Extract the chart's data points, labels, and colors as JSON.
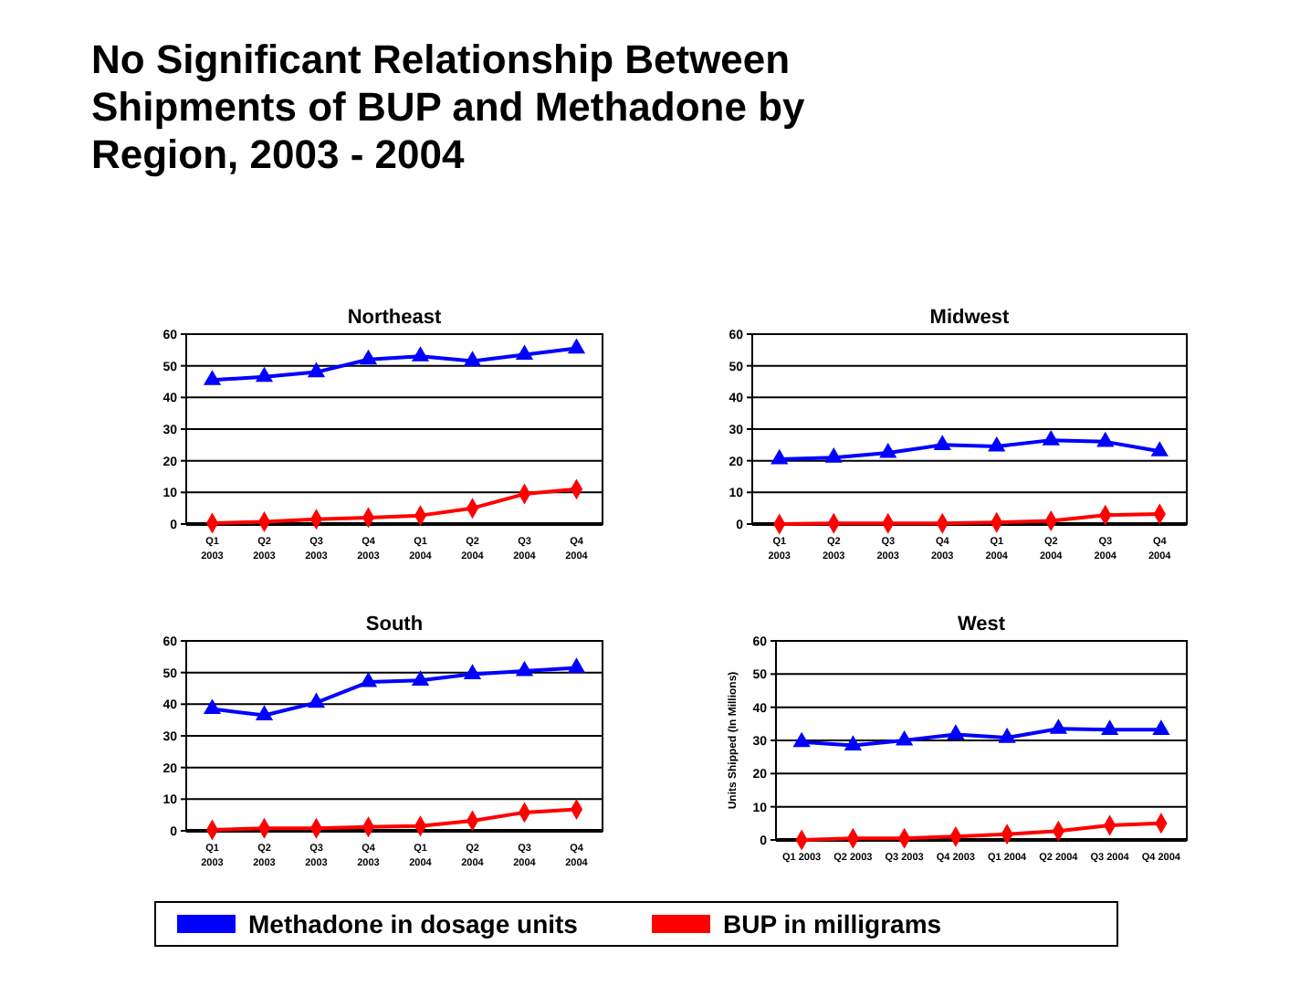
{
  "chart_data": [
    {
      "type": "line",
      "title": "Northeast",
      "annotations": [
        "No Significant Relationship Between Shipments of BUP and Methadone by Region, 2003 - 2004"
      ],
      "categories": [
        "Q1\n2003",
        "Q2\n2003",
        "Q3\n2003",
        "Q4\n2003",
        "Q1\n2004",
        "Q2\n2004",
        "Q3\n2004",
        "Q4\n2004"
      ],
      "ylim": [
        0,
        60
      ],
      "yticks": [
        0,
        10,
        20,
        30,
        40,
        50,
        60
      ],
      "grid": "y",
      "legend": "bottom",
      "series": [
        {
          "name": "Methadone in dosage units",
          "color": "#0000ff",
          "marker": "triangle",
          "values": [
            45.5,
            46.5,
            48,
            52,
            53,
            51.5,
            53.5,
            55.5
          ]
        },
        {
          "name": "BUP in milligrams",
          "color": "#ff0000",
          "marker": "diamond",
          "values": [
            0.3,
            0.7,
            1.5,
            2,
            2.7,
            5,
            9.5,
            11
          ]
        }
      ]
    },
    {
      "type": "line",
      "title": "Midwest",
      "categories": [
        "Q1\n2003",
        "Q2\n2003",
        "Q3\n2003",
        "Q4\n2003",
        "Q1\n2004",
        "Q2\n2004",
        "Q3\n2004",
        "Q4\n2004"
      ],
      "ylim": [
        0,
        60
      ],
      "yticks": [
        0,
        10,
        20,
        30,
        40,
        50,
        60
      ],
      "grid": "y",
      "series": [
        {
          "color": "#0000ff",
          "marker": "triangle",
          "values": [
            20.5,
            21,
            22.5,
            25,
            24.5,
            26.5,
            26,
            23
          ]
        },
        {
          "color": "#ff0000",
          "marker": "diamond",
          "values": [
            0,
            0.2,
            0.2,
            0.2,
            0.5,
            1,
            2.8,
            3.2
          ]
        }
      ]
    },
    {
      "type": "line",
      "title": "South",
      "categories": [
        "Q1\n2003",
        "Q2\n2003",
        "Q3\n2003",
        "Q4\n2003",
        "Q1\n2004",
        "Q2\n2004",
        "Q3\n2004",
        "Q4\n2004"
      ],
      "ylim": [
        0,
        60
      ],
      "yticks": [
        0,
        10,
        20,
        30,
        40,
        50,
        60
      ],
      "grid": "y",
      "series": [
        {
          "color": "#0000ff",
          "marker": "triangle",
          "values": [
            38.5,
            36.5,
            40.5,
            47,
            47.5,
            49.5,
            50.5,
            51.5
          ]
        },
        {
          "color": "#ff0000",
          "marker": "diamond",
          "values": [
            0.3,
            0.8,
            0.8,
            1.2,
            1.5,
            3.2,
            5.8,
            6.8
          ]
        }
      ]
    },
    {
      "type": "line",
      "title": "West",
      "ylabel": "Units Shipped (In Millions)",
      "categories": [
        "Q1 2003",
        "Q2 2003",
        "Q3 2003",
        "Q4 2003",
        "Q1 2004",
        "Q2 2004",
        "Q3 2004",
        "Q4 2004"
      ],
      "ylim": [
        0,
        60
      ],
      "yticks": [
        0,
        10,
        20,
        30,
        40,
        50,
        60
      ],
      "grid": "y",
      "series": [
        {
          "color": "#0000ff",
          "marker": "triangle",
          "values": [
            29.5,
            28.5,
            30,
            31.8,
            30.8,
            33.5,
            33.2,
            33.2
          ]
        },
        {
          "color": "#ff0000",
          "marker": "diamond",
          "values": [
            0,
            0.5,
            0.5,
            1,
            1.7,
            2.7,
            4.4,
            5
          ]
        }
      ]
    }
  ]
}
